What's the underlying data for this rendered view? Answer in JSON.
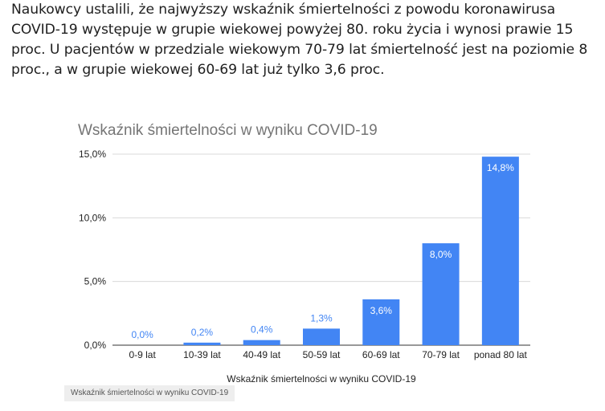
{
  "article": {
    "paragraph": "Naukowcy ustalili, że najwyższy wskaźnik śmiertelności z powodu koronawirusa COVID-19 występuje w grupie wiekowej powyżej 80. roku życia i wynosi prawie 15 proc. U pacjentów w przedziale wiekowym 70-79 lat śmiertelność jest na poziomie 8 proc., a w grupie wiekowej 60-69 lat już tylko 3,6 proc."
  },
  "chart_data": {
    "type": "bar",
    "title": "Wskaźnik śmiertelności w wyniku COVID-19",
    "xlabel": "Wskaźnik śmiertelności w wyniku COVID-19",
    "ylabel": "",
    "categories": [
      "0-9 lat",
      "10-39 lat",
      "40-49 lat",
      "50-59 lat",
      "60-69 lat",
      "70-79 lat",
      "ponad 80 lat"
    ],
    "values": [
      0.0,
      0.2,
      0.4,
      1.3,
      3.6,
      8.0,
      14.8
    ],
    "data_labels": [
      "0,0%",
      "0,2%",
      "0,4%",
      "1,3%",
      "3,6%",
      "8,0%",
      "14,8%"
    ],
    "yticks": [
      0,
      5,
      10,
      15
    ],
    "ytick_labels": [
      "0,0%",
      "5,0%",
      "10,0%",
      "15,0%"
    ],
    "ylim": [
      0,
      15
    ],
    "grid": true,
    "legend": "none",
    "bar_color": "#4285f4",
    "label_outside_color": "#4285f4",
    "label_inside_color": "#ffffff"
  },
  "caption": {
    "text": "Wskaźnik śmiertelności w wyniku COVID-19"
  }
}
